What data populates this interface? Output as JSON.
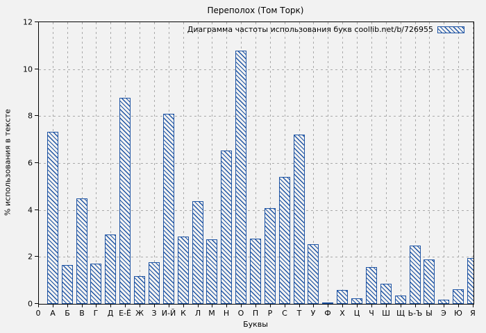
{
  "title": "Переполох (Том Торк)",
  "colors": {
    "background": "#f2f2f2",
    "bar_outline": "#1d53a3",
    "grid": "#a9a9a9",
    "axis": "#000000"
  },
  "chart_data": {
    "type": "bar",
    "title": "Переполох (Том Торк)",
    "xlabel": "Буквы",
    "ylabel": "% использования в тексте",
    "legend_label": "Диаграмма частоты использования букв coollib.net/b/726955",
    "legend_position": "top-right-inside",
    "grid": true,
    "bar_hatch": "diagonal-down",
    "ylim": [
      0,
      12
    ],
    "yticks": [
      0,
      2,
      4,
      6,
      8,
      10,
      12
    ],
    "x_origin_label": "0",
    "categories": [
      "А",
      "Б",
      "В",
      "Г",
      "Д",
      "Е-Ё",
      "Ж",
      "З",
      "И-Й",
      "К",
      "Л",
      "М",
      "Н",
      "О",
      "П",
      "Р",
      "С",
      "Т",
      "У",
      "Ф",
      "Х",
      "Ц",
      "Ч",
      "Ш",
      "Щ",
      "Ь-Ъ",
      "Ы",
      "Э",
      "Ю",
      "Я"
    ],
    "values": [
      7.33,
      1.65,
      4.5,
      1.7,
      2.95,
      8.78,
      1.17,
      1.76,
      8.1,
      2.87,
      4.38,
      2.74,
      6.53,
      10.8,
      2.78,
      4.09,
      5.42,
      7.21,
      2.53,
      0.06,
      0.6,
      0.24,
      1.57,
      0.87,
      0.36,
      2.48,
      1.88,
      0.17,
      0.62,
      1.95
    ]
  }
}
